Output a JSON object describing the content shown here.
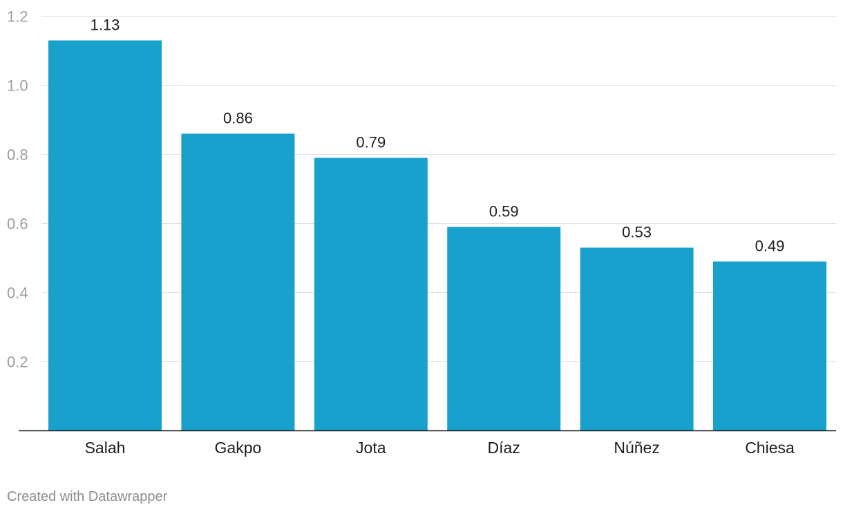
{
  "chart_data": {
    "type": "bar",
    "categories": [
      "Salah",
      "Gakpo",
      "Jota",
      "Díaz",
      "Núñez",
      "Chiesa"
    ],
    "values": [
      1.13,
      0.86,
      0.79,
      0.59,
      0.53,
      0.49
    ],
    "data_labels": [
      "1.13",
      "0.86",
      "0.79",
      "0.59",
      "0.53",
      "0.49"
    ],
    "yticks": [
      0.2,
      0.4,
      0.6,
      0.8,
      1.0,
      1.2
    ],
    "ytick_labels": [
      "0.2",
      "0.4",
      "0.6",
      "0.8",
      "1.0",
      "1.2"
    ],
    "ylim": [
      0,
      1.2
    ],
    "grid": true,
    "bar_color": "#18a1cd",
    "title": "",
    "xlabel": "",
    "ylabel": ""
  },
  "footer": {
    "credit": "Created with Datawrapper"
  }
}
